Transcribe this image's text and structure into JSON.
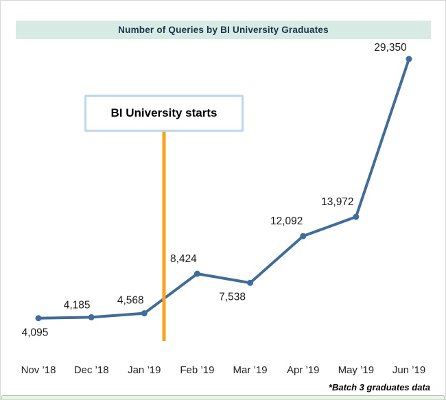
{
  "page": {
    "footnote": "*Batch 3 graduates data"
  },
  "annotation": {
    "label": "BI University starts"
  },
  "chart_data": {
    "type": "line",
    "title": "Number of Queries by BI University Graduates",
    "series_name": "Number of Queries",
    "categories": [
      "Nov ’18",
      "Dec ’18",
      "Jan ’19",
      "Feb ’19",
      "Mar ’19",
      "Apr ’19",
      "May ’19",
      "Jun ’19"
    ],
    "values": [
      4095,
      4185,
      4568,
      8424,
      7538,
      12092,
      13972,
      29350
    ],
    "xlabel": "",
    "ylabel": "",
    "ylim": [
      0,
      30000
    ],
    "grid": false,
    "legend": "none",
    "markers": true,
    "annotations": [
      {
        "type": "vline",
        "between": [
          "Jan ’19",
          "Feb ’19"
        ],
        "label": "BI University starts"
      }
    ],
    "colors": {
      "line": "#3D6D9E",
      "marker": "#3D6D9E",
      "annotation_line": "#F9A11B",
      "annotation_box_border": "#BDD7F2",
      "title_bg": "#D8EAE4",
      "title_text": "#1B3246",
      "value_label_text": "#1A1A1A",
      "axis_label_text": "#222222",
      "footnote_text": "#000000"
    }
  }
}
